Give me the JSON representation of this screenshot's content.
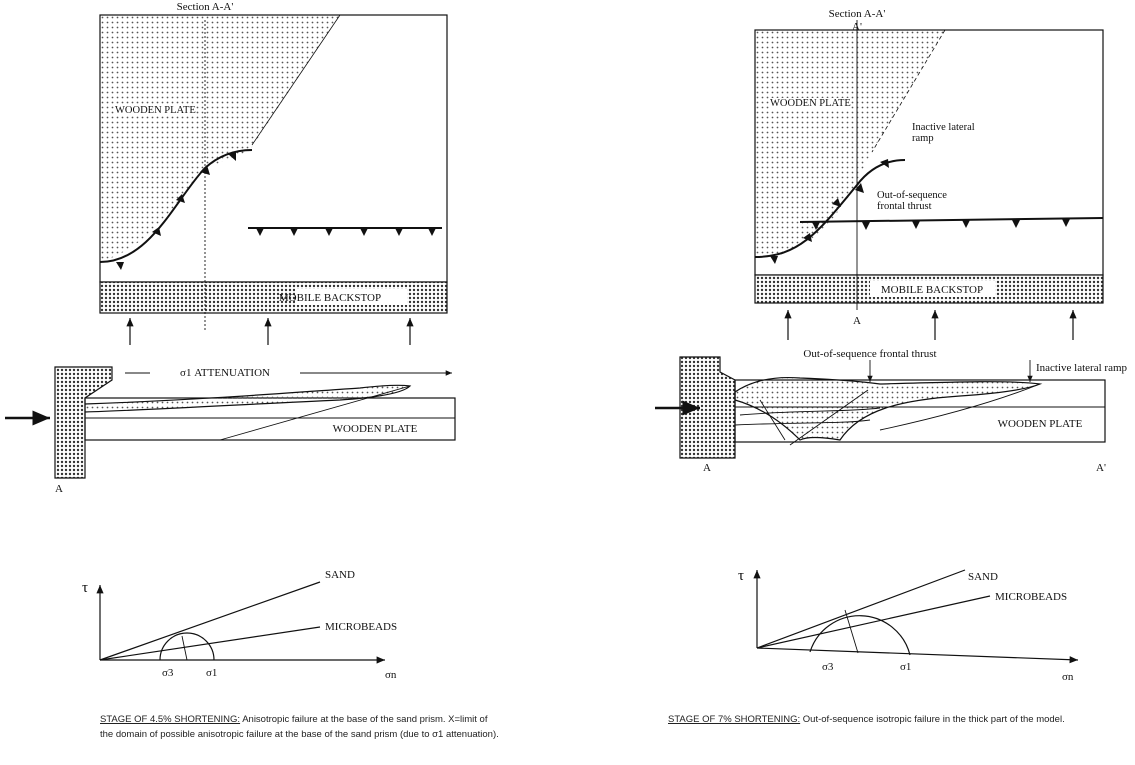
{
  "panels": [
    {
      "section_label": "Section A-A'",
      "map_plate_label": "WOODEN PLATE",
      "backstop_label": "MOBILE BACKSTOP",
      "attenuation_label": "σ1 ATTENUATION",
      "cross_section_plate_label": "WOODEN PLATE",
      "cross_section_start": "A",
      "mohr": {
        "tau": "τ",
        "sand": "SAND",
        "microbeads": "MICROBEADS",
        "sigma3": "σ3",
        "sigma1": "σ1",
        "sigma_n": "σn"
      },
      "caption_title": "STAGE OF 4.5% SHORTENING:",
      "caption_text": "Anisotropic failure at the base of the sand prism. X=limit of the domain of possible anisotropic failure at the base of the sand prism (due to σ1 attenuation)."
    },
    {
      "section_label": "Section A-A'",
      "section_top": "A'",
      "map_plate_label": "WOODEN PLATE",
      "ramp_label": "Inactive lateral ramp",
      "thrust_label": "Out-of-sequence frontal thrust",
      "backstop_label": "MOBILE BACKSTOP",
      "map_section_end": "A",
      "cross_thrust_label": "Out-of-sequence frontal thrust",
      "cross_ramp_label": "Inactive lateral ramp",
      "cross_section_plate_label": "WOODEN PLATE",
      "cross_section_start": "A",
      "cross_section_end": "A'",
      "mohr": {
        "tau": "τ",
        "sand": "SAND",
        "microbeads": "MICROBEADS",
        "sigma3": "σ3",
        "sigma1": "σ1",
        "sigma_n": "σn"
      },
      "caption_title": "STAGE OF 7% SHORTENING:",
      "caption_text": "Out-of-sequence isotropic failure in the thick part of the model."
    }
  ]
}
